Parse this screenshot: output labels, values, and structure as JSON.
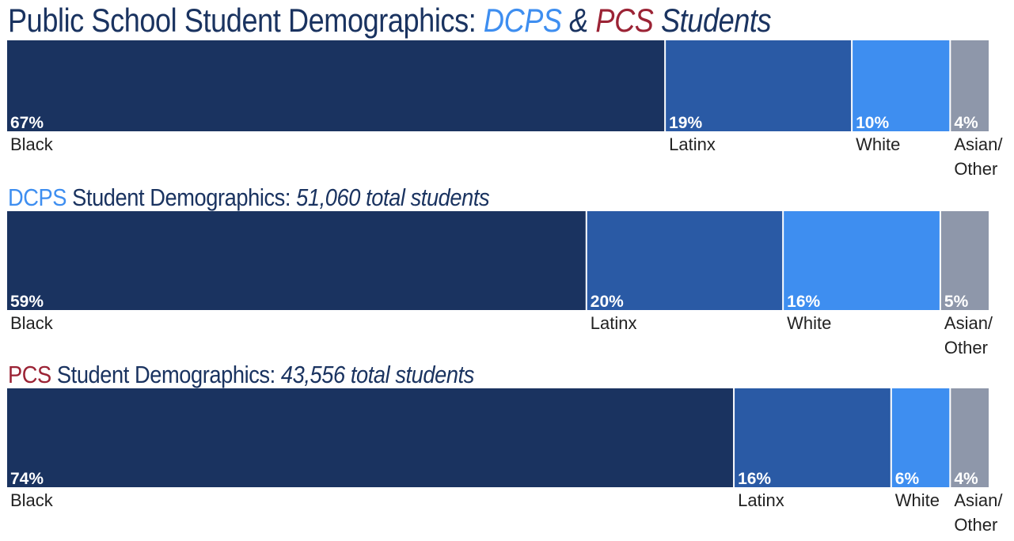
{
  "headings": {
    "main": {
      "prefix": "Public School Student Demographics: ",
      "dcps": "DCPS",
      "amp": " & ",
      "pcs": "PCS",
      "suffix": " Students"
    },
    "dcps": {
      "name": "DCPS",
      "rest": " Student Demographics: ",
      "total": "51,060 total students"
    },
    "pcs": {
      "name": "PCS",
      "rest": " Student Demographics: ",
      "total": "43,556 total students"
    }
  },
  "colors": {
    "title": "#1a3360",
    "dcps": "#3e8ef0",
    "pcs": "#9b2335",
    "Black": "#1a3360",
    "Latinx": "#2a5aa5",
    "White": "#3e8ef0",
    "Asian/Other": "#8e97aa"
  },
  "chart_data": [
    {
      "type": "bar",
      "stacked": "horizontal-100%",
      "categories": [
        "Black",
        "Latinx",
        "White",
        "Asian/Other"
      ],
      "values": [
        67,
        19,
        10,
        4
      ],
      "value_labels": [
        "67%",
        "19%",
        "10%",
        "4%"
      ],
      "category_labels": [
        [
          "Black"
        ],
        [
          "Latinx"
        ],
        [
          "White"
        ],
        [
          "Asian/",
          "Other"
        ]
      ],
      "unit": "%"
    },
    {
      "type": "bar",
      "stacked": "horizontal-100%",
      "categories": [
        "Black",
        "Latinx",
        "White",
        "Asian/Other"
      ],
      "values": [
        59,
        20,
        16,
        5
      ],
      "value_labels": [
        "59%",
        "20%",
        "16%",
        "5%"
      ],
      "category_labels": [
        [
          "Black"
        ],
        [
          "Latinx"
        ],
        [
          "White"
        ],
        [
          "Asian/",
          "Other"
        ]
      ],
      "unit": "%"
    },
    {
      "type": "bar",
      "stacked": "horizontal-100%",
      "categories": [
        "Black",
        "Latinx",
        "White",
        "Asian/Other"
      ],
      "values": [
        74,
        16,
        6,
        4
      ],
      "value_labels": [
        "74%",
        "16%",
        "6%",
        "4%"
      ],
      "category_labels": [
        [
          "Black"
        ],
        [
          "Latinx"
        ],
        [
          "White"
        ],
        [
          "Asian/",
          "Other"
        ]
      ],
      "unit": "%"
    }
  ]
}
